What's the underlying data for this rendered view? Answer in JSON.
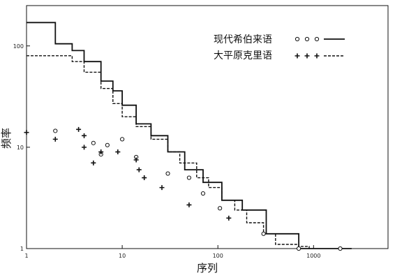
{
  "chart_data": {
    "type": "line",
    "xlabel": "序列",
    "ylabel": "频率",
    "x_scale": "log",
    "y_scale": "log",
    "xlim": [
      1,
      6000
    ],
    "ylim": [
      1,
      250
    ],
    "x_ticks": [
      "1",
      "10",
      "100",
      "1000"
    ],
    "y_ticks": [
      "1",
      "10",
      "100"
    ],
    "legend_position": "top-right",
    "series": [
      {
        "name": "现代希伯来语",
        "line_style": "solid",
        "marker": "circle",
        "line": [
          [
            1,
            170
          ],
          [
            2,
            105
          ],
          [
            3,
            90
          ],
          [
            4,
            70
          ],
          [
            6,
            45
          ],
          [
            8,
            36
          ],
          [
            10,
            26
          ],
          [
            14,
            17
          ],
          [
            20,
            13
          ],
          [
            30,
            9
          ],
          [
            45,
            6
          ],
          [
            70,
            4.5
          ],
          [
            110,
            3
          ],
          [
            180,
            2.4
          ],
          [
            320,
            1.4
          ],
          [
            700,
            1
          ],
          [
            2500,
            1
          ]
        ],
        "markers": [
          [
            2,
            14.5
          ],
          [
            5,
            11
          ],
          [
            6,
            8.5
          ],
          [
            7,
            10.5
          ],
          [
            10,
            12
          ],
          [
            14,
            8
          ],
          [
            30,
            5.5
          ],
          [
            50,
            5
          ],
          [
            70,
            3.5
          ],
          [
            105,
            2.5
          ],
          [
            300,
            1.4
          ],
          [
            700,
            1
          ],
          [
            1900,
            1
          ]
        ]
      },
      {
        "name": "大平原克里语",
        "line_style": "dashed",
        "marker": "plus",
        "line": [
          [
            1,
            80
          ],
          [
            3,
            70
          ],
          [
            4,
            55
          ],
          [
            6,
            38
          ],
          [
            8,
            27
          ],
          [
            10,
            20
          ],
          [
            14,
            16
          ],
          [
            20,
            12
          ],
          [
            30,
            9
          ],
          [
            40,
            7
          ],
          [
            60,
            5
          ],
          [
            80,
            4
          ],
          [
            110,
            3
          ],
          [
            150,
            2.4
          ],
          [
            200,
            1.8
          ],
          [
            300,
            1.4
          ],
          [
            400,
            1.1
          ],
          [
            700,
            1.05
          ],
          [
            900,
            1
          ]
        ],
        "markers": [
          [
            1,
            14
          ],
          [
            2,
            12
          ],
          [
            3.5,
            15
          ],
          [
            4,
            13
          ],
          [
            4,
            10
          ],
          [
            5,
            7
          ],
          [
            6,
            9
          ],
          [
            9,
            9
          ],
          [
            14,
            7.5
          ],
          [
            15,
            6
          ],
          [
            17,
            5
          ],
          [
            26,
            4
          ],
          [
            50,
            2.7
          ],
          [
            130,
            2
          ]
        ]
      }
    ],
    "colors": {
      "axis": "#111111",
      "line": "#111111",
      "background": "#ffffff"
    }
  }
}
